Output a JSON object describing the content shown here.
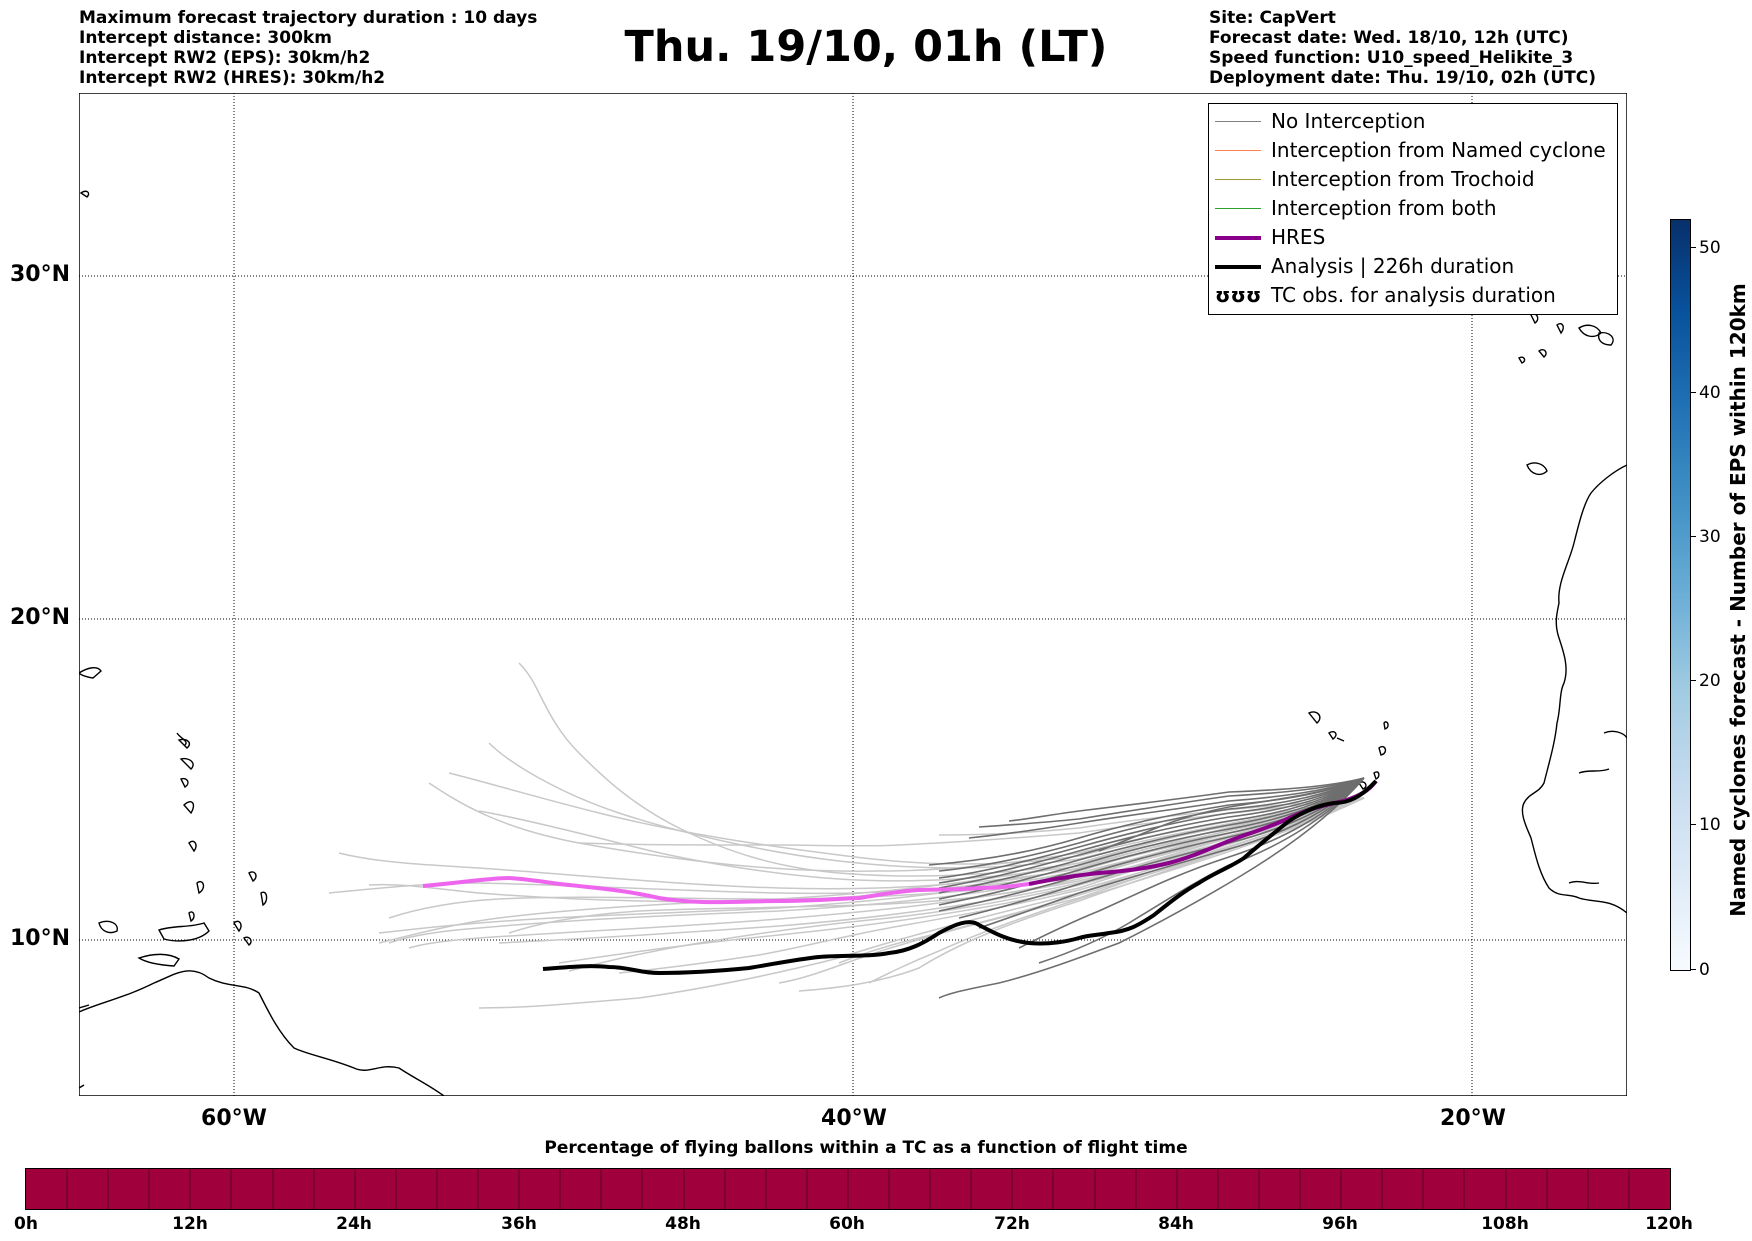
{
  "header": {
    "title": "Thu. 19/10, 01h (LT)",
    "left_lines": [
      "Maximum forecast trajectory duration : 10 days",
      "Intercept distance: 300km",
      "Intercept RW2 (EPS):  30km/h2",
      "Intercept RW2 (HRES): 30km/h2"
    ],
    "right_lines": [
      "Site: CapVert",
      "Forecast date: Wed. 18/10, 12h (UTC)",
      "Speed function: U10_speed_Helikite_3",
      "Deployment date: Thu. 19/10, 02h (UTC)"
    ]
  },
  "map": {
    "lat_labels": [
      "30°N",
      "20°N",
      "10°N"
    ],
    "lon_labels": [
      "60°W",
      "40°W",
      "20°W"
    ]
  },
  "legend": {
    "items": [
      {
        "label": "No Interception",
        "color": "#808080"
      },
      {
        "label": "Interception from Named cyclone",
        "color": "#ff7f50"
      },
      {
        "label": "Interception from Trochoid",
        "color": "#999933"
      },
      {
        "label": "Interception from both",
        "color": "#2ca02c"
      },
      {
        "label": "HRES",
        "color": "#8b008b"
      },
      {
        "label": "Analysis | 226h duration",
        "color": "#000000"
      },
      {
        "label": "TC obs. for analysis duration",
        "color": "#000000",
        "symbol": "ʊʊʊ"
      }
    ]
  },
  "colorbar_right": {
    "label": "Named cyclones forecast - Number of EPS within 120km",
    "ticks": [
      "0",
      "10",
      "20",
      "30",
      "40",
      "50"
    ]
  },
  "colorbar_bottom": {
    "title": "Percentage of flying ballons within a TC as a function of flight time",
    "ticks": [
      "0h",
      "12h",
      "24h",
      "36h",
      "48h",
      "60h",
      "72h",
      "84h",
      "96h",
      "108h",
      "120h"
    ],
    "color": "#a0003c"
  }
}
